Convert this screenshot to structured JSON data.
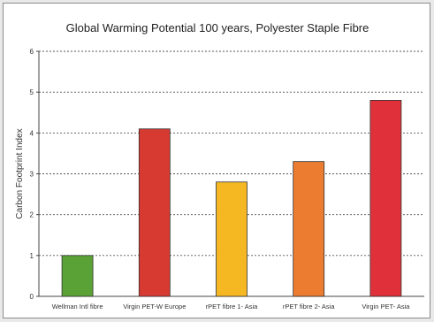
{
  "chart_data": {
    "type": "bar",
    "title": "Global Warming Potential 100 years, Polyester Staple Fibre",
    "xlabel": "",
    "ylabel": "Carbon Footprint Index",
    "ylim": [
      0,
      6
    ],
    "yticks": [
      0,
      1,
      2,
      3,
      4,
      5,
      6
    ],
    "grid": true,
    "legend": "none",
    "categories": [
      "Wellman Intl fibre",
      "Virgin PET-W Europe",
      "rPET fibre 1- Asia",
      "rPET fibre 2- Asia",
      "Virgin PET- Asia"
    ],
    "values": [
      1.0,
      4.1,
      2.8,
      3.3,
      4.8
    ],
    "colors": [
      "#5aa236",
      "#d63a31",
      "#f5b823",
      "#ec7c2f",
      "#e0313a"
    ]
  }
}
